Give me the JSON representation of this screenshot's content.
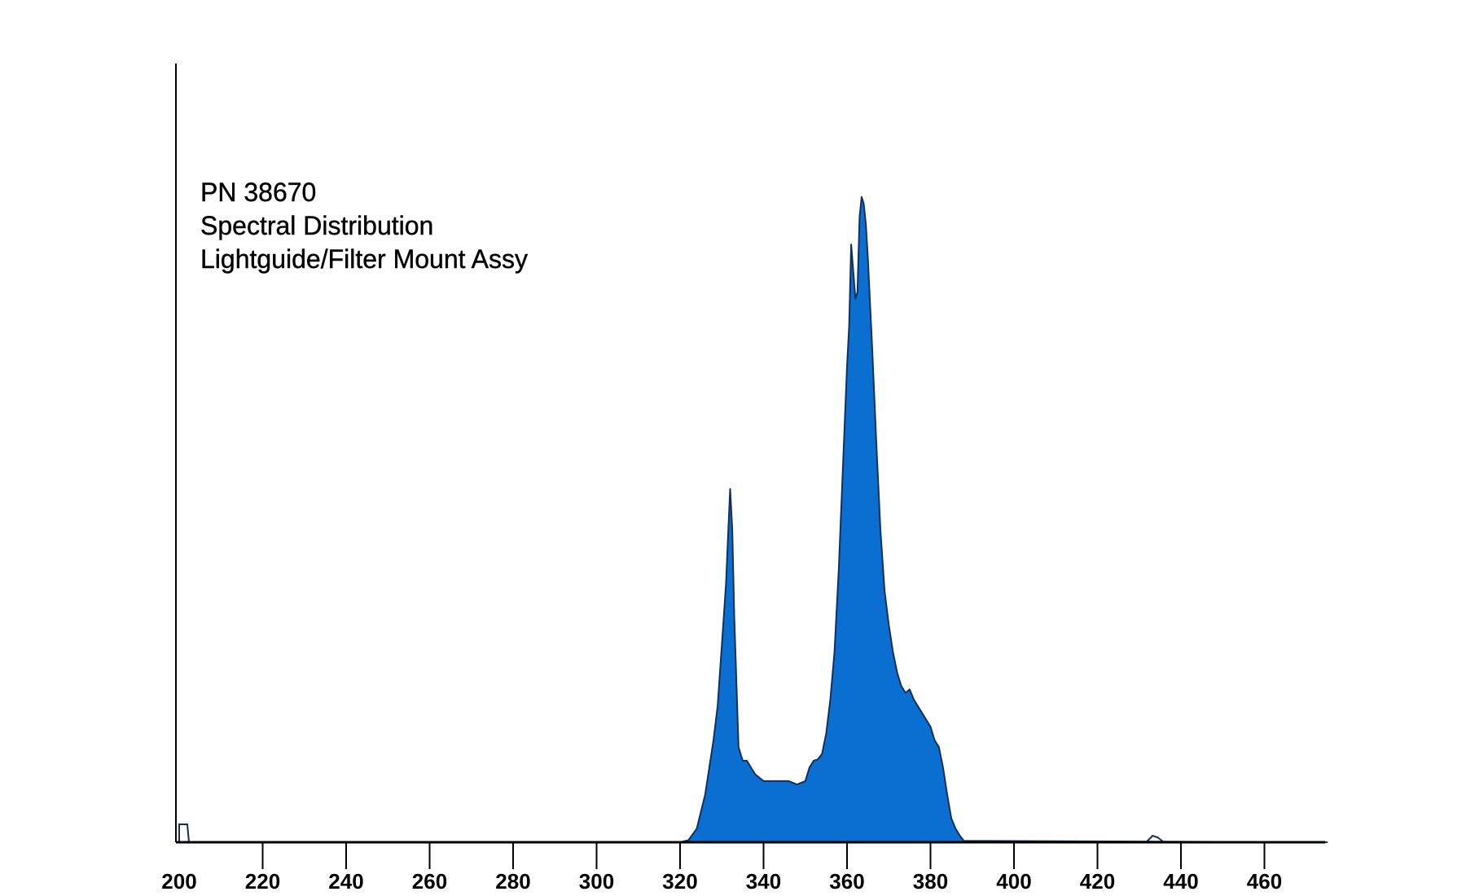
{
  "chart_data": {
    "type": "area",
    "title_lines": [
      "PN 38670",
      "Spectral Distribution",
      "Lightguide/Filter Mount Assy"
    ],
    "xlabel": "",
    "ylabel": "",
    "xlim": [
      200,
      475
    ],
    "ylim": [
      0,
      100
    ],
    "x_ticks": [
      200,
      220,
      240,
      260,
      280,
      300,
      320,
      340,
      360,
      380,
      400,
      420,
      440,
      460
    ],
    "grid": false,
    "legend": "none",
    "colors": {
      "fill": "#0a6fd1",
      "stroke": "#12305a",
      "axis": "#000000"
    },
    "series": [
      {
        "x": [
          200,
          320,
          322,
          324,
          326,
          327,
          328,
          329,
          330,
          331,
          331.5,
          332,
          332.5,
          333,
          334,
          335,
          336,
          337,
          338,
          340,
          342,
          344,
          346,
          348,
          350,
          351,
          352,
          353,
          354,
          355,
          356,
          357,
          358,
          359,
          360,
          360.5,
          361,
          361.5,
          362,
          362.5,
          363,
          363.5,
          364,
          364.5,
          365,
          366,
          367,
          368,
          369,
          370,
          371,
          372,
          373,
          374,
          375,
          376,
          377,
          378,
          379,
          380,
          381,
          382,
          383,
          384,
          385,
          386,
          387,
          388,
          475
        ],
        "y": [
          0,
          0,
          0.3,
          2,
          7,
          11,
          15,
          20,
          29,
          38,
          45,
          52,
          46,
          33,
          14,
          12,
          12,
          11,
          10,
          9,
          9,
          9,
          9,
          8.5,
          9,
          11,
          12,
          12.2,
          13,
          16,
          21,
          28,
          40,
          55,
          70,
          76,
          88,
          84,
          80,
          81,
          92,
          95,
          94,
          91,
          86,
          73,
          59,
          46,
          37,
          32,
          28,
          25,
          23,
          22,
          22.5,
          21,
          20,
          19,
          18,
          17,
          15,
          14,
          11,
          7,
          3.5,
          2,
          1,
          0.2,
          0
        ]
      }
    ]
  }
}
